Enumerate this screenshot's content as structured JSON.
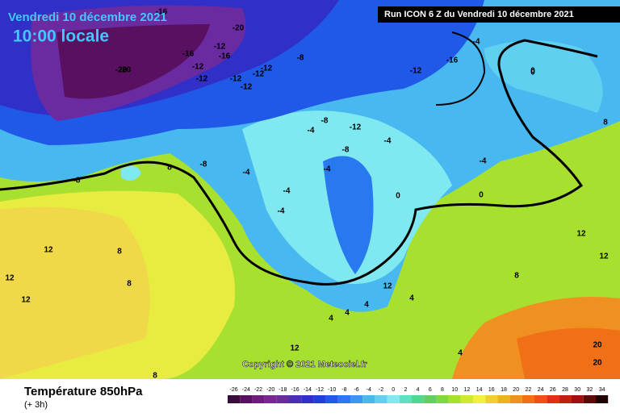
{
  "header": {
    "date": "Vendredi 10 décembre 2021",
    "time": "10:00 locale",
    "run": "Run ICON 6 Z du Vendredi 10 décembre 2021"
  },
  "copyright": "Copyright © 2021 Meteociel.fr",
  "footer": {
    "title": "Température 850hPa",
    "subtitle": "(+ 3h)"
  },
  "legend": {
    "ticks": [
      -26,
      -24,
      -22,
      -20,
      -18,
      -16,
      -14,
      -12,
      -10,
      -8,
      -6,
      -4,
      -2,
      0,
      2,
      4,
      6,
      8,
      10,
      12,
      14,
      16,
      18,
      20,
      22,
      24,
      26,
      28,
      30,
      32,
      34
    ],
    "colors": [
      "#3a0a3a",
      "#5a1060",
      "#701a80",
      "#7a2890",
      "#6a2aa0",
      "#4a30b0",
      "#3030c8",
      "#2040d8",
      "#2058e8",
      "#2878f0",
      "#3898f0",
      "#48b8f0",
      "#60d0f0",
      "#80e8f0",
      "#60e0c0",
      "#50d890",
      "#60d060",
      "#80d840",
      "#a8e030",
      "#d0e830",
      "#f0f040",
      "#f0d030",
      "#f0b020",
      "#f09020",
      "#f07018",
      "#f05010",
      "#e03010",
      "#c02010",
      "#a01010",
      "#600808",
      "#200000"
    ]
  },
  "contour_labels": [
    "-20",
    "-16",
    "-20",
    "-16",
    "-12",
    "-16",
    "-12",
    "-20",
    "-12",
    "-12",
    "-12",
    "-8",
    "-12",
    "-12",
    "-16",
    "-12",
    "-4",
    "0",
    "-8",
    "-4",
    "-8",
    "-4",
    "-4",
    "-8",
    "-4",
    "-4",
    "-12",
    "-8",
    "-4",
    "0",
    "0",
    "8",
    "8",
    "12",
    "12",
    "8",
    "4",
    "4",
    "12",
    "12",
    "8",
    "4",
    "12",
    "20",
    "20",
    "8",
    "4",
    "4",
    "-4",
    "0",
    "8",
    "12",
    "12"
  ]
}
